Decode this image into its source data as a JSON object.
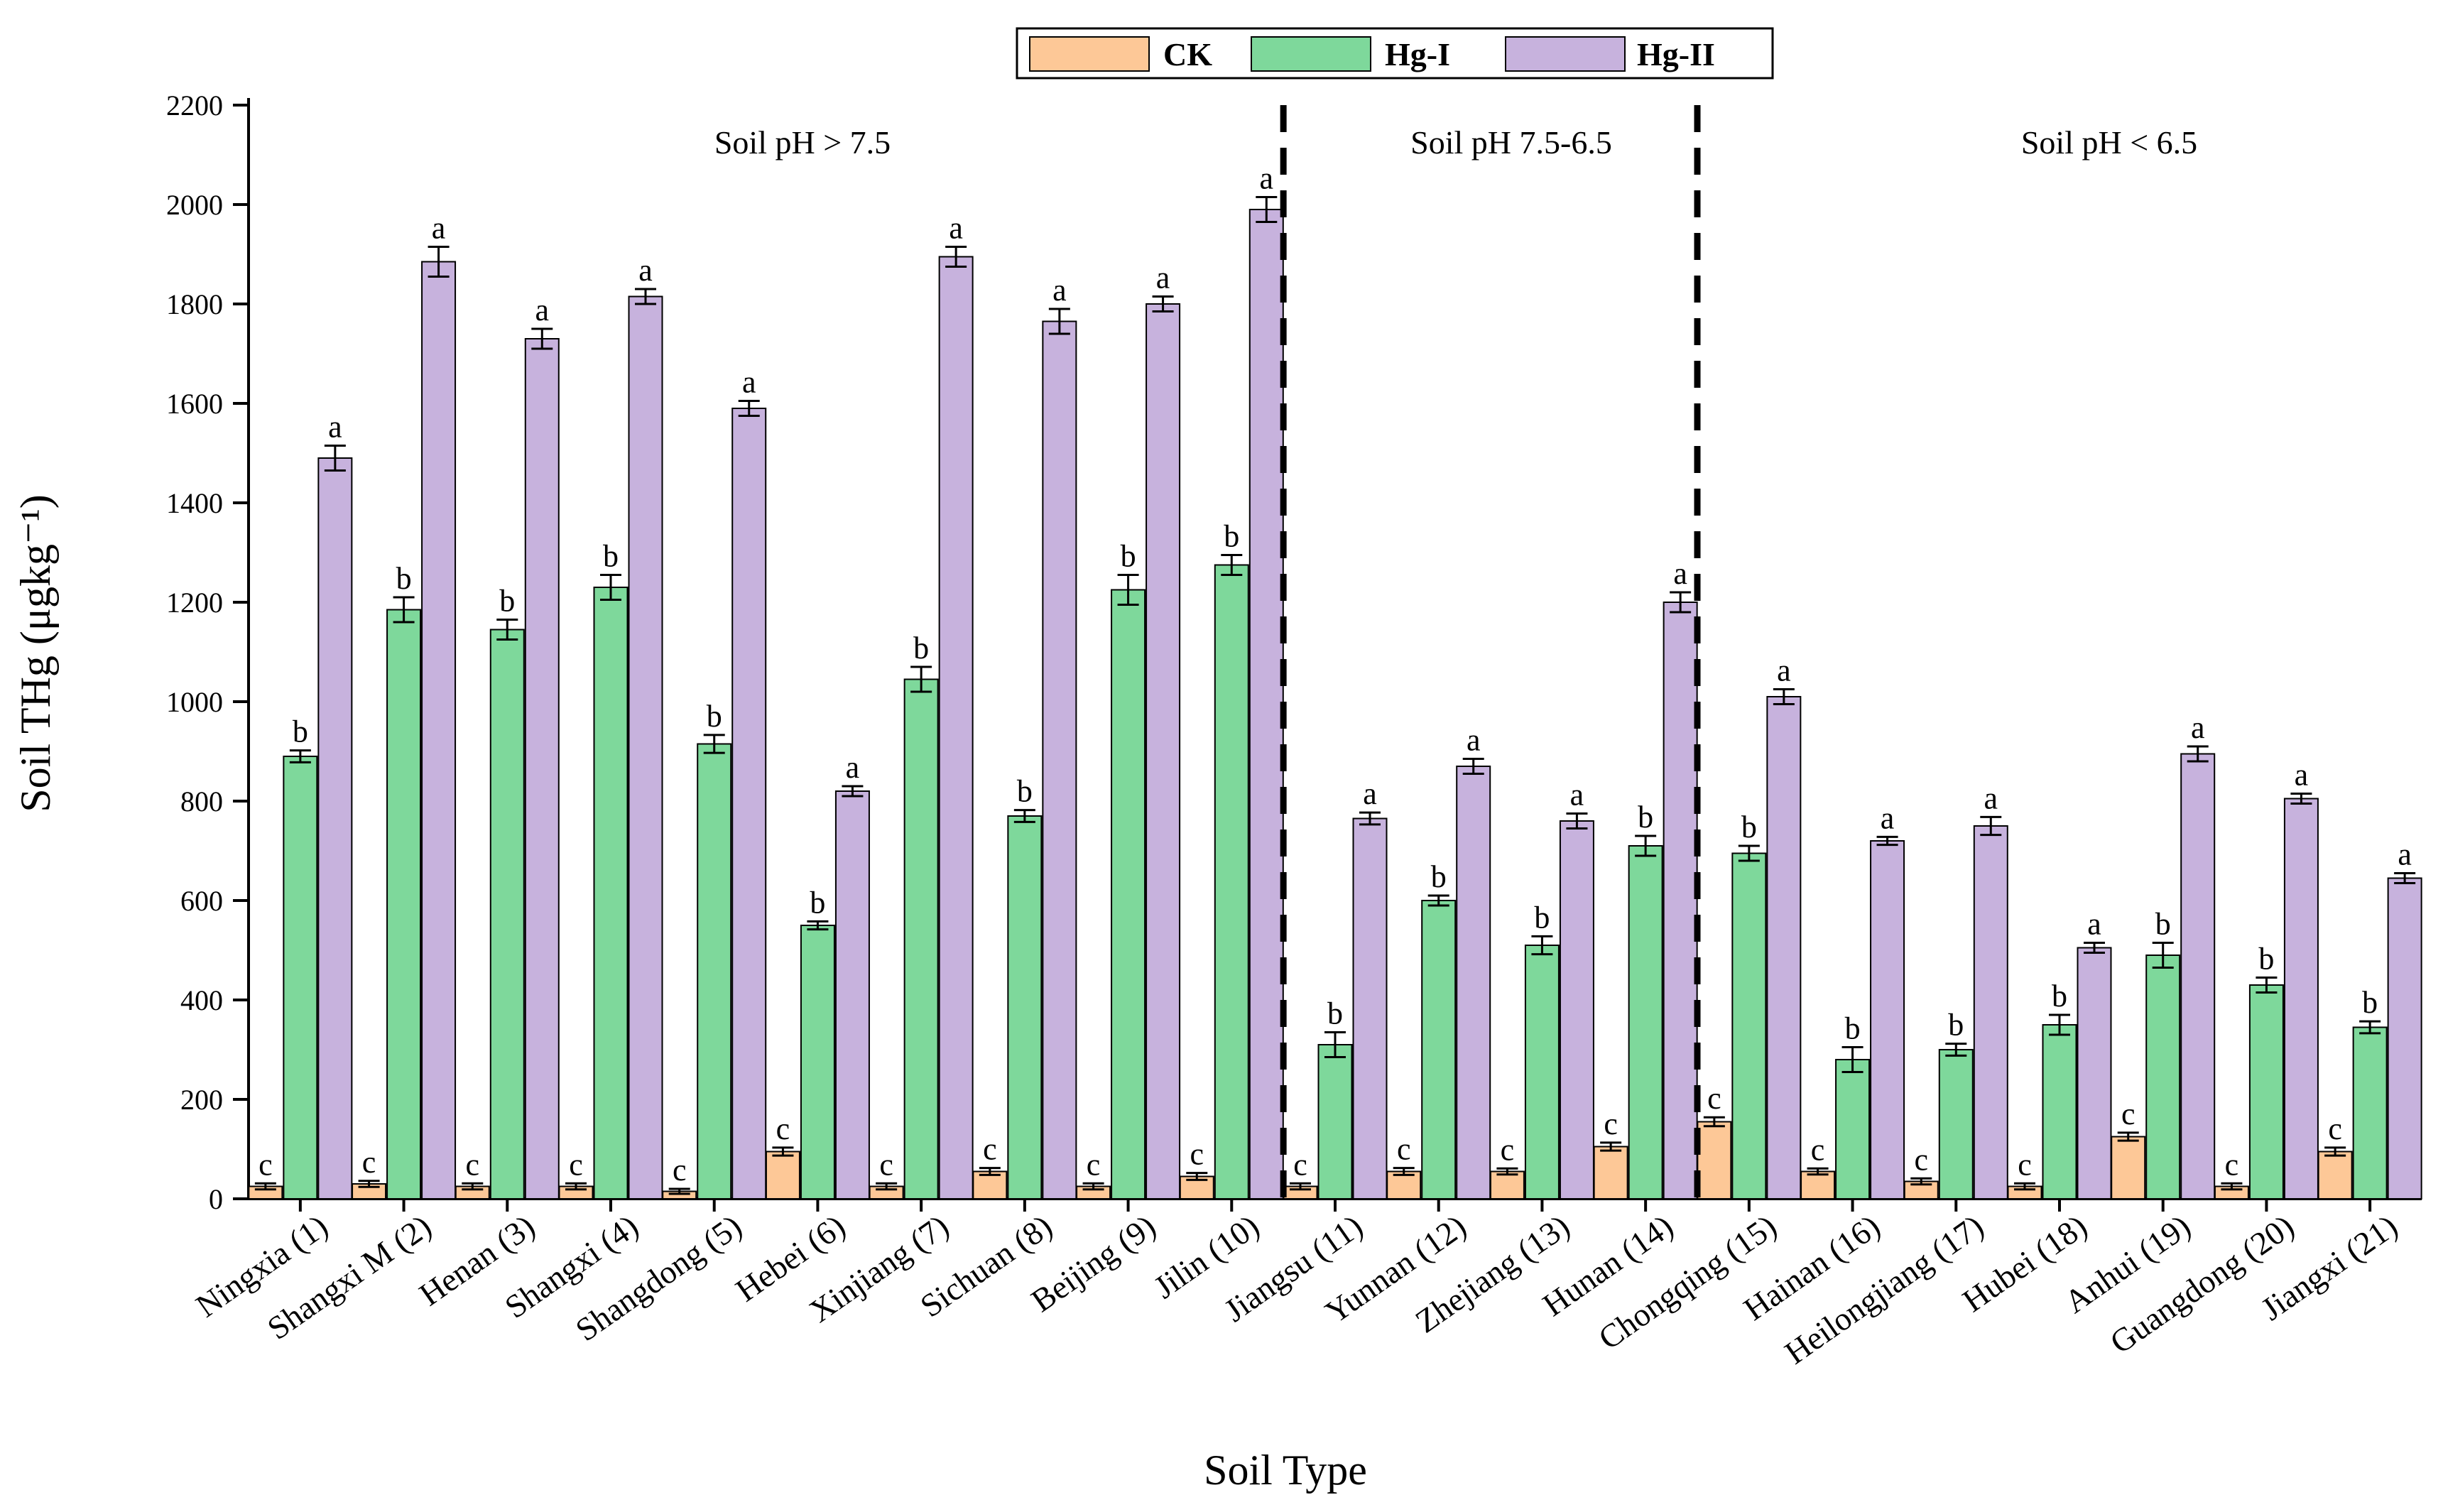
{
  "chart_data": {
    "type": "bar",
    "title": "",
    "xlabel": "Soil Type",
    "ylabel": "Soil THg (μgkg⁻¹)",
    "ylim": [
      0,
      2200
    ],
    "yticks": [
      0,
      200,
      400,
      600,
      800,
      1000,
      1200,
      1400,
      1600,
      1800,
      2000,
      2200
    ],
    "legend_position": "top-center",
    "categories": [
      "Ningxia (1)",
      "Shangxi M (2)",
      "Henan (3)",
      "Shangxi (4)",
      "Shangdong (5)",
      "Hebei (6)",
      "Xinjiang (7)",
      "Sichuan (8)",
      "Beijing (9)",
      "Jilin (10)",
      "Jiangsu (11)",
      "Yunnan (12)",
      "Zhejiang (13)",
      "Hunan (14)",
      "Chongqing (15)",
      "Hainan (16)",
      "Heilongjiang (17)",
      "Hubei (18)",
      "Anhui (19)",
      "Guangdong (20)",
      "Jiangxi (21)"
    ],
    "series": [
      {
        "name": "CK",
        "color": "#FDC897",
        "values": [
          25,
          30,
          25,
          25,
          15,
          95,
          25,
          55,
          25,
          45,
          25,
          55,
          55,
          105,
          155,
          55,
          35,
          25,
          125,
          25,
          95
        ],
        "errors": [
          6,
          6,
          6,
          6,
          5,
          8,
          6,
          7,
          6,
          7,
          6,
          7,
          6,
          8,
          9,
          6,
          6,
          6,
          8,
          6,
          8
        ],
        "significance": [
          "c",
          "c",
          "c",
          "c",
          "c",
          "c",
          "c",
          "c",
          "c",
          "c",
          "c",
          "c",
          "c",
          "c",
          "c",
          "c",
          "c",
          "c",
          "c",
          "c",
          "c"
        ]
      },
      {
        "name": "Hg-I",
        "color": "#7ED89B",
        "values": [
          890,
          1185,
          1145,
          1230,
          915,
          550,
          1045,
          770,
          1225,
          1275,
          310,
          600,
          510,
          710,
          695,
          280,
          300,
          350,
          490,
          430,
          345
        ],
        "errors": [
          12,
          25,
          20,
          25,
          18,
          8,
          25,
          12,
          30,
          20,
          25,
          10,
          18,
          20,
          15,
          25,
          12,
          20,
          25,
          15,
          12
        ],
        "significance": [
          "b",
          "b",
          "b",
          "b",
          "b",
          "b",
          "b",
          "b",
          "b",
          "b",
          "b",
          "b",
          "b",
          "b",
          "b",
          "b",
          "b",
          "b",
          "b",
          "b",
          "b"
        ]
      },
      {
        "name": "Hg-II",
        "color": "#C7B2DD",
        "values": [
          1490,
          1885,
          1730,
          1815,
          1590,
          820,
          1895,
          1765,
          1800,
          1990,
          765,
          870,
          760,
          1200,
          1010,
          720,
          750,
          505,
          895,
          805,
          645
        ],
        "errors": [
          25,
          30,
          20,
          15,
          15,
          10,
          20,
          25,
          15,
          25,
          12,
          15,
          15,
          20,
          15,
          8,
          18,
          10,
          15,
          10,
          10
        ],
        "significance": [
          "a",
          "a",
          "a",
          "a",
          "a",
          "a",
          "a",
          "a",
          "a",
          "a",
          "a",
          "a",
          "a",
          "a",
          "a",
          "a",
          "a",
          "a",
          "a",
          "a",
          "a"
        ]
      }
    ],
    "region_labels": [
      "Soil pH > 7.5",
      "Soil pH 7.5-6.5",
      "Soil pH < 6.5"
    ],
    "region_dividers_after_category": [
      10,
      14
    ]
  }
}
